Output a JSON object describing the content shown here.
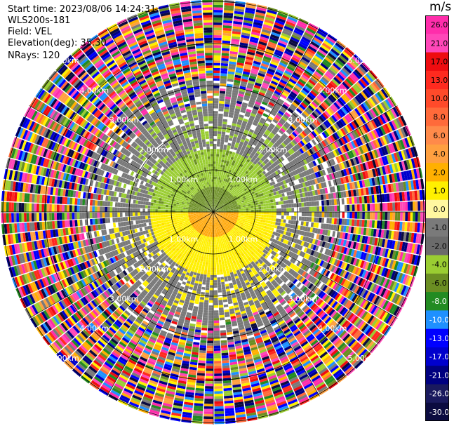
{
  "header": {
    "start_time": "Start time: 2023/08/06 14:24:31",
    "site": "WLS200s-181",
    "field": "Field: VEL",
    "elevation": "Elevation(deg): 35.30",
    "nrays": "NRays: 120"
  },
  "colorbar": {
    "unit": "m/s",
    "ticks": [
      "26.0",
      "21.0",
      "17.0",
      "13.0",
      "10.0",
      "8.0",
      "6.0",
      "4.0",
      "2.0",
      "1.0",
      "0.0",
      "-1.0",
      "-2.0",
      "-4.0",
      "-6.0",
      "-8.0",
      "-10.0",
      "-13.0",
      "-17.0",
      "-21.0",
      "-26.0",
      "-30.0"
    ],
    "colors": [
      "#ff2dab",
      "#ff47b8",
      "#ee0c10",
      "#ff2a1f",
      "#ff4a2a",
      "#ff6a3a",
      "#ff8a4a",
      "#ffa040",
      "#ffb000",
      "#fff000",
      "#fff7a0",
      "#7a7a7a",
      "#6b6b6b",
      "#9acd32",
      "#6b8e23",
      "#228b22",
      "#1e90ff",
      "#0000ff",
      "#0000cd",
      "#000080",
      "#1a1a5e",
      "#0b0b40"
    ]
  },
  "chart_data": {
    "type": "heatmap",
    "title": "",
    "field": "VEL",
    "nrays": 120,
    "range_rings_km": [
      1.0,
      2.0,
      3.0,
      4.0,
      5.0
    ],
    "range_labels": [
      "1.00km",
      "2.00km",
      "3.00km",
      "4.00km",
      "5.00km"
    ],
    "zones": [
      {
        "range_km": [
          0,
          0.6
        ],
        "sector": "north",
        "velocity_ms": -4.0
      },
      {
        "range_km": [
          0,
          0.6
        ],
        "sector": "south",
        "velocity_ms": 4.0
      },
      {
        "range_km": [
          0.6,
          1.5
        ],
        "sector": "north",
        "velocity_ms": -2.0
      },
      {
        "range_km": [
          0.6,
          1.5
        ],
        "sector": "south",
        "velocity_ms": 2.0
      },
      {
        "range_km": [
          1.5,
          2.5
        ],
        "sector": "all",
        "velocity_ms": 0.0
      },
      {
        "range_km": [
          2.5,
          5.0
        ],
        "sector": "all",
        "velocity_ms": "noise"
      }
    ],
    "vlim": [
      -30.0,
      26.0
    ]
  }
}
